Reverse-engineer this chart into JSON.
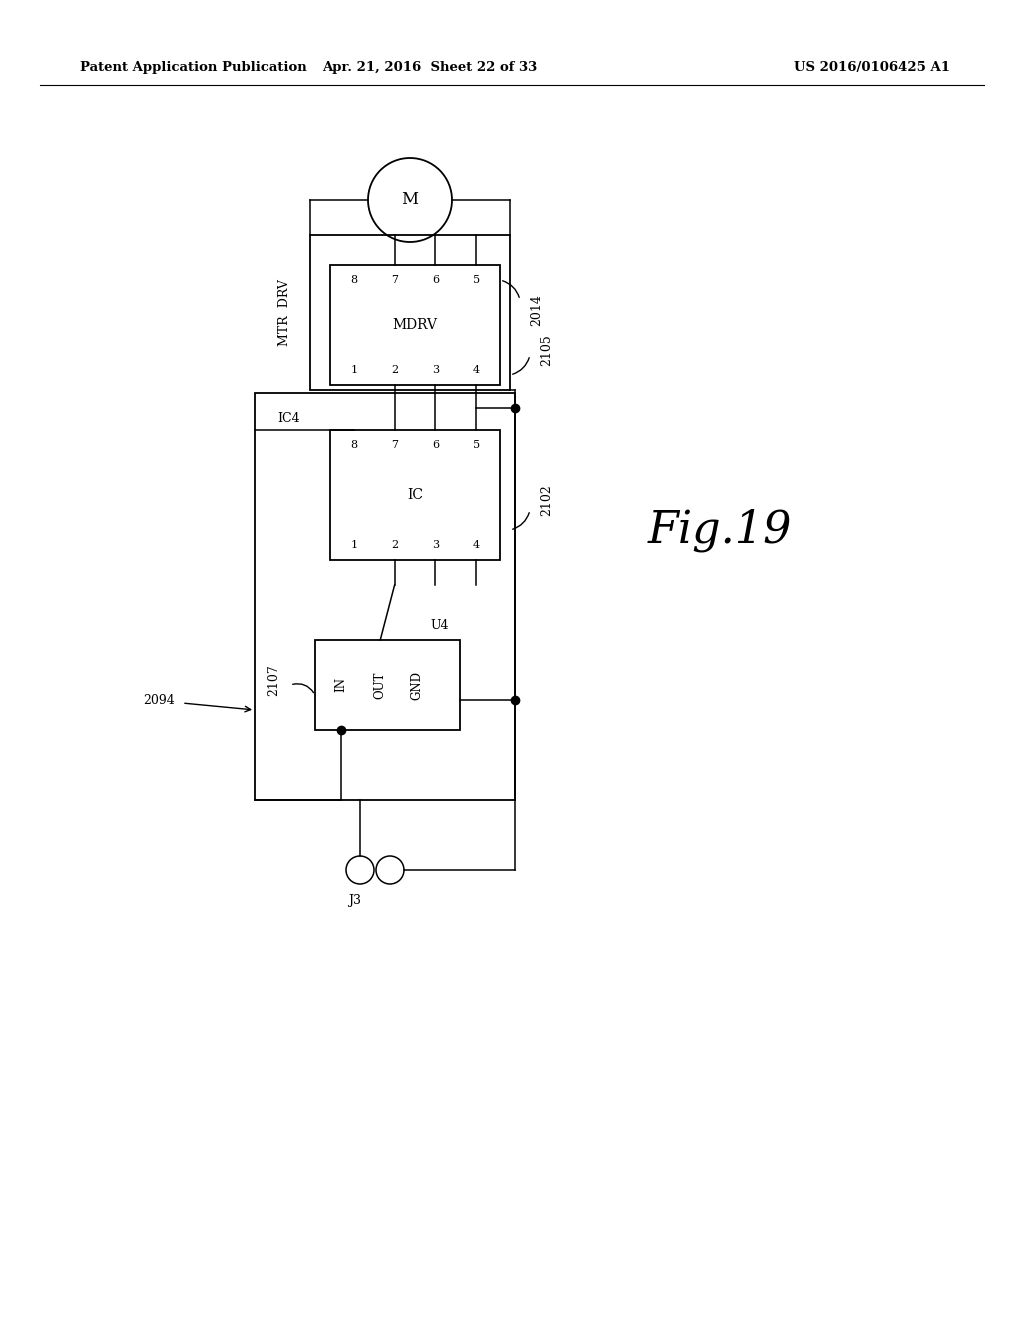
{
  "bg_color": "#ffffff",
  "header_left": "Patent Application Publication",
  "header_mid": "Apr. 21, 2016  Sheet 22 of 33",
  "header_right": "US 2016/0106425 A1",
  "fig_label": "Fig.19",
  "lw": 1.3,
  "lw_thin": 1.1
}
